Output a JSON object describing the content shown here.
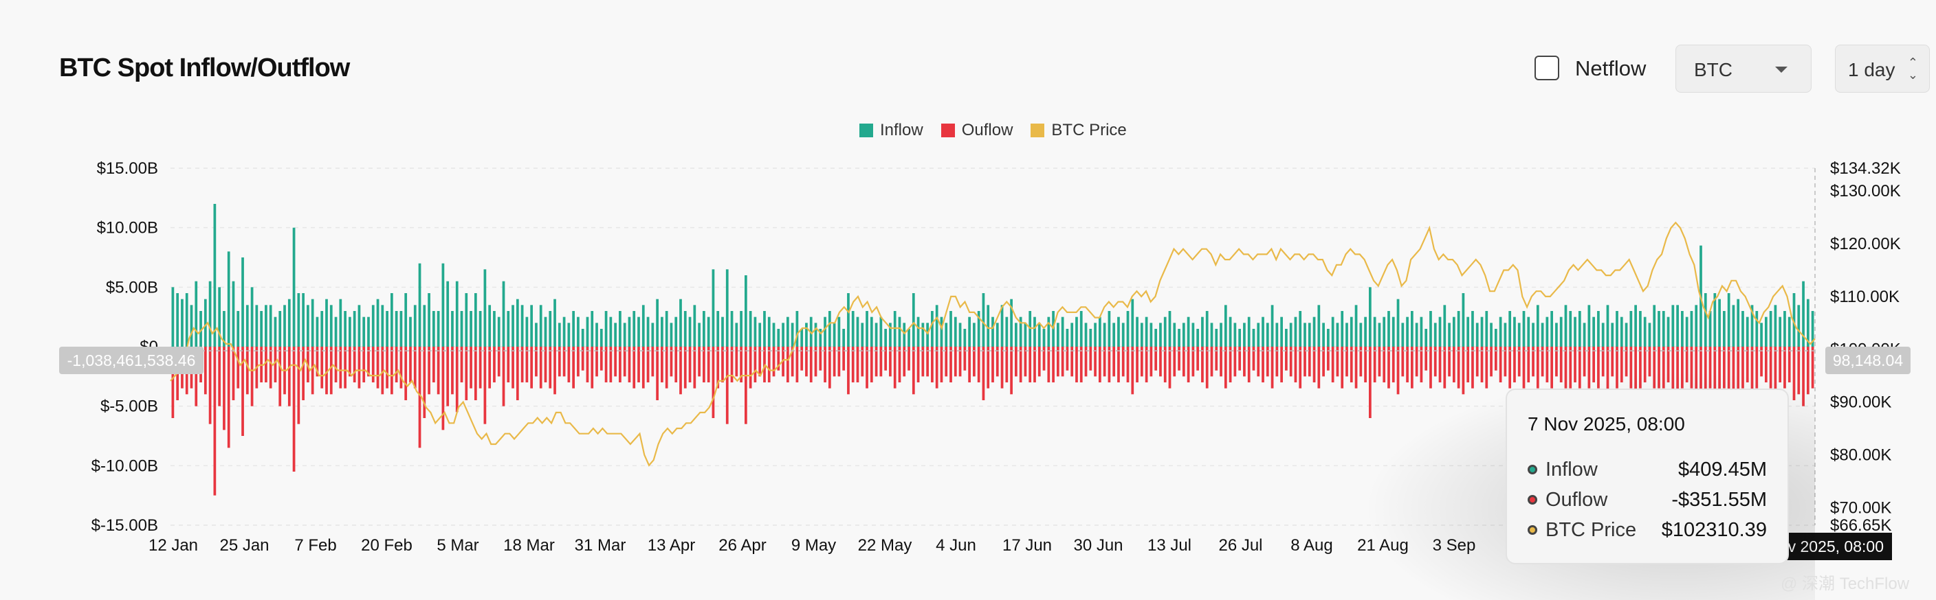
{
  "header": {
    "title": "BTC Spot Inflow/Outflow",
    "netflow_label": "Netflow",
    "asset_select": "BTC",
    "period_select": "1 day"
  },
  "legend": [
    {
      "label": "Inflow",
      "color": "#23a98e"
    },
    {
      "label": "Ouflow",
      "color": "#e8363f"
    },
    {
      "label": "BTC Price",
      "color": "#e9b949"
    }
  ],
  "crosshair": {
    "left_value": "-1,038,461,538.46",
    "right_value": "98,148.04",
    "date_label": "v 2025, 08:00"
  },
  "tooltip": {
    "date": "7 Nov 2025, 08:00",
    "rows": [
      {
        "label": "Inflow",
        "value": "$409.45M",
        "color": "#23a98e"
      },
      {
        "label": "Ouflow",
        "value": "-$351.55M",
        "color": "#e8363f"
      },
      {
        "label": "BTC Price",
        "value": "$102310.39",
        "color": "#e9b949"
      }
    ]
  },
  "watermark": "@ 深潮 TechFlow",
  "chart_data": {
    "type": "bar",
    "title": "BTC Spot Inflow/Outflow",
    "x_ticks": [
      "12 Jan",
      "25 Jan",
      "7 Feb",
      "20 Feb",
      "5 Mar",
      "18 Mar",
      "31 Mar",
      "13 Apr",
      "26 Apr",
      "9 May",
      "22 May",
      "4 Jun",
      "17 Jun",
      "30 Jun",
      "13 Jul",
      "26 Jul",
      "8 Aug",
      "21 Aug",
      "3 Sep"
    ],
    "y_left_ticks": [
      "$15.00B",
      "$10.00B",
      "$5.00B",
      "$0",
      "$-5.00B",
      "$-10.00B",
      "$-15.00B"
    ],
    "y_left_range": [
      -15,
      15
    ],
    "y_right_ticks": [
      "$134.32K",
      "$130.00K",
      "$120.00K",
      "$110.00K",
      "$100.00K",
      "$90.00K",
      "$80.00K",
      "$70.00K",
      "$66.65K"
    ],
    "y_right_range": [
      66.65,
      134.32
    ],
    "inflow_color": "#23a98e",
    "outflow_color": "#e8363f",
    "price_color": "#e9b949",
    "series": [
      {
        "name": "Inflow",
        "unit": "$B",
        "values": [
          5.0,
          4.5,
          4.0,
          4.5,
          3.5,
          5.5,
          3.0,
          4.0,
          5.5,
          12.0,
          5.0,
          3.0,
          8.0,
          5.5,
          3.0,
          7.5,
          3.5,
          5.0,
          3.5,
          3.0,
          3.5,
          3.5,
          2.5,
          3.0,
          3.5,
          4.0,
          10.0,
          4.5,
          4.5,
          3.5,
          4.0,
          2.5,
          3.0,
          4.0,
          3.5,
          2.5,
          4.0,
          3.0,
          2.5,
          3.0,
          3.5,
          2.5,
          2.5,
          3.5,
          4.0,
          3.5,
          3.0,
          4.5,
          3.0,
          3.0,
          4.5,
          2.5,
          3.5,
          7.0,
          3.5,
          4.5,
          3.0,
          3.0,
          7.0,
          5.5,
          3.0,
          5.5,
          3.0,
          4.5,
          3.0,
          4.5,
          3.0,
          6.5,
          3.5,
          3.0,
          2.5,
          5.5,
          3.0,
          3.5,
          4.0,
          3.5,
          2.5,
          3.5,
          2.0,
          3.5,
          2.5,
          3.0,
          4.0,
          2.0,
          2.5,
          2.0,
          3.0,
          2.5,
          1.5,
          2.5,
          3.0,
          2.0,
          1.5,
          3.0,
          2.5,
          2.0,
          3.0,
          2.0,
          2.5,
          3.0,
          2.5,
          3.5,
          2.5,
          2.0,
          4.0,
          2.5,
          3.0,
          2.0,
          2.5,
          4.0,
          3.0,
          2.5,
          3.5,
          2.0,
          3.0,
          2.5,
          6.5,
          3.0,
          2.5,
          6.5,
          3.0,
          2.0,
          3.0,
          6.0,
          3.0,
          2.5,
          2.0,
          3.0,
          2.5,
          2.0,
          1.5,
          2.0,
          2.5,
          2.0,
          3.0,
          1.5,
          2.0,
          2.5,
          2.0,
          1.5,
          2.5,
          3.0,
          2.0,
          2.5,
          1.5,
          4.5,
          3.0,
          2.5,
          2.0,
          3.0,
          2.5,
          2.0,
          2.5,
          1.5,
          2.0,
          3.0,
          2.5,
          2.0,
          1.5,
          4.5,
          2.5,
          2.0,
          2.0,
          3.0,
          3.5,
          2.5,
          2.0,
          3.0,
          2.5,
          2.0,
          1.5,
          2.5,
          2.0,
          3.0,
          4.5,
          3.5,
          2.5,
          2.0,
          3.5,
          2.5,
          4.0,
          2.0,
          2.5,
          2.0,
          3.0,
          2.5,
          2.0,
          1.5,
          2.5,
          3.0,
          2.0,
          2.5,
          1.5,
          2.0,
          2.5,
          3.0,
          2.0,
          1.5,
          2.0,
          2.5,
          2.0,
          3.0,
          2.0,
          2.5,
          2.0,
          3.0,
          4.0,
          2.5,
          2.0,
          2.5,
          2.0,
          1.5,
          2.0,
          2.5,
          3.0,
          2.0,
          1.5,
          2.0,
          2.5,
          2.0,
          1.5,
          2.5,
          3.0,
          2.0,
          1.5,
          2.0,
          3.5,
          2.5,
          2.0,
          1.5,
          2.0,
          2.5,
          1.5,
          2.0,
          2.5,
          2.0,
          3.5,
          2.0,
          2.5,
          1.5,
          2.0,
          2.5,
          3.0,
          2.0,
          2.0,
          2.5,
          3.5,
          2.0,
          1.5,
          2.5,
          2.0,
          3.0,
          2.0,
          2.5,
          3.5,
          2.0,
          2.5,
          5.0,
          2.5,
          2.0,
          2.5,
          3.0,
          2.5,
          4.0,
          2.0,
          2.5,
          3.0,
          2.0,
          2.5,
          1.5,
          3.0,
          2.0,
          2.5,
          3.5,
          2.0,
          2.5,
          3.0,
          4.5,
          2.5,
          3.0,
          2.0,
          2.5,
          3.0,
          2.0,
          1.5,
          2.5,
          2.0,
          3.0,
          2.5,
          2.0,
          3.0,
          2.5,
          2.0,
          3.5,
          2.0,
          2.5,
          3.0,
          2.0,
          2.5,
          3.5,
          3.0,
          2.5,
          3.0,
          2.0,
          3.5,
          2.5,
          3.0,
          2.0,
          3.5,
          2.0,
          3.0,
          2.5,
          2.0,
          3.0,
          3.5,
          3.0,
          2.5,
          2.0,
          3.5,
          3.0,
          3.0,
          2.5,
          3.5,
          3.5,
          3.0,
          2.5,
          3.0,
          3.5,
          8.5,
          4.5,
          3.0,
          4.5,
          4.0,
          3.0,
          4.5,
          3.5,
          4.0,
          3.0,
          2.5,
          3.5,
          3.0,
          2.0,
          2.5,
          3.0,
          3.5,
          2.5,
          3.0,
          2.5,
          4.5,
          3.5,
          5.5,
          4.0,
          3.0
        ]
      },
      {
        "name": "Ouflow",
        "unit": "$B",
        "values": [
          -6.0,
          -4.5,
          -3.5,
          -4.0,
          -3.5,
          -5.0,
          -3.0,
          -4.0,
          -6.5,
          -12.5,
          -5.0,
          -7.0,
          -8.5,
          -4.5,
          -3.5,
          -7.5,
          -4.0,
          -5.0,
          -3.5,
          -3.0,
          -3.0,
          -3.5,
          -3.0,
          -5.0,
          -4.0,
          -5.0,
          -10.5,
          -6.5,
          -4.5,
          -3.0,
          -4.0,
          -2.5,
          -3.5,
          -4.0,
          -4.0,
          -3.0,
          -3.5,
          -3.5,
          -2.5,
          -3.0,
          -3.5,
          -3.0,
          -2.5,
          -3.0,
          -3.5,
          -4.0,
          -3.5,
          -4.0,
          -3.0,
          -3.5,
          -4.5,
          -3.0,
          -3.5,
          -8.5,
          -6.0,
          -4.0,
          -3.0,
          -4.0,
          -7.0,
          -5.0,
          -4.0,
          -5.5,
          -3.0,
          -4.5,
          -3.5,
          -4.5,
          -3.5,
          -6.5,
          -3.5,
          -3.0,
          -2.5,
          -5.0,
          -3.0,
          -3.5,
          -4.5,
          -3.0,
          -3.0,
          -3.5,
          -2.5,
          -3.5,
          -3.0,
          -3.5,
          -4.0,
          -2.5,
          -2.5,
          -3.0,
          -3.5,
          -2.5,
          -2.0,
          -3.0,
          -3.5,
          -2.5,
          -2.0,
          -3.0,
          -3.0,
          -2.5,
          -3.0,
          -2.5,
          -3.0,
          -3.5,
          -3.0,
          -3.5,
          -3.0,
          -2.5,
          -4.5,
          -3.0,
          -3.5,
          -2.5,
          -3.0,
          -4.0,
          -3.5,
          -3.0,
          -3.5,
          -2.5,
          -3.0,
          -3.0,
          -6.0,
          -3.5,
          -3.0,
          -6.5,
          -3.0,
          -2.5,
          -3.0,
          -6.5,
          -3.5,
          -3.0,
          -2.5,
          -3.0,
          -3.0,
          -2.5,
          -2.0,
          -2.5,
          -3.0,
          -2.5,
          -3.0,
          -2.0,
          -2.5,
          -3.0,
          -2.5,
          -2.0,
          -3.0,
          -3.5,
          -2.5,
          -2.5,
          -2.0,
          -4.0,
          -3.0,
          -3.0,
          -2.5,
          -3.5,
          -3.0,
          -2.5,
          -2.5,
          -2.0,
          -2.5,
          -3.5,
          -3.0,
          -2.5,
          -2.0,
          -4.0,
          -3.0,
          -2.5,
          -2.5,
          -3.0,
          -3.5,
          -3.0,
          -2.5,
          -3.0,
          -2.5,
          -2.5,
          -2.0,
          -3.0,
          -2.5,
          -3.0,
          -4.5,
          -3.5,
          -3.0,
          -2.5,
          -3.5,
          -3.0,
          -4.0,
          -2.5,
          -3.0,
          -2.5,
          -3.0,
          -3.0,
          -2.5,
          -2.0,
          -3.0,
          -3.0,
          -2.5,
          -2.5,
          -2.0,
          -2.5,
          -3.0,
          -3.0,
          -2.5,
          -2.0,
          -2.5,
          -3.0,
          -2.5,
          -3.0,
          -2.5,
          -3.0,
          -2.5,
          -3.0,
          -4.0,
          -3.0,
          -2.5,
          -3.0,
          -2.5,
          -2.0,
          -2.5,
          -3.0,
          -3.5,
          -2.5,
          -2.0,
          -2.5,
          -3.0,
          -2.5,
          -2.0,
          -3.0,
          -3.5,
          -2.5,
          -2.0,
          -2.5,
          -3.5,
          -3.0,
          -2.5,
          -2.0,
          -2.5,
          -3.0,
          -2.0,
          -2.5,
          -3.0,
          -2.5,
          -3.5,
          -2.5,
          -3.0,
          -2.0,
          -2.5,
          -3.0,
          -3.5,
          -2.5,
          -2.5,
          -3.0,
          -3.5,
          -2.5,
          -2.0,
          -3.0,
          -2.5,
          -3.5,
          -2.5,
          -3.0,
          -3.5,
          -2.5,
          -3.0,
          -6.0,
          -3.0,
          -2.5,
          -3.0,
          -3.5,
          -3.0,
          -4.0,
          -2.5,
          -3.0,
          -3.5,
          -2.5,
          -3.0,
          -2.0,
          -3.5,
          -2.5,
          -3.0,
          -3.5,
          -2.5,
          -3.0,
          -3.5,
          -4.0,
          -3.0,
          -3.5,
          -2.5,
          -3.0,
          -3.5,
          -2.5,
          -2.0,
          -3.0,
          -2.5,
          -3.5,
          -3.0,
          -2.5,
          -3.5,
          -3.0,
          -2.5,
          -3.5,
          -2.5,
          -3.0,
          -3.5,
          -2.5,
          -3.0,
          -3.5,
          -3.5,
          -3.0,
          -3.5,
          -2.5,
          -3.5,
          -3.0,
          -3.5,
          -2.5,
          -4.0,
          -2.5,
          -3.5,
          -3.0,
          -2.5,
          -3.5,
          -4.0,
          -3.5,
          -3.0,
          -2.5,
          -3.5,
          -3.5,
          -3.5,
          -3.0,
          -4.0,
          -4.0,
          -3.5,
          -3.0,
          -3.5,
          -4.0,
          -6.5,
          -5.0,
          -3.5,
          -5.0,
          -4.5,
          -3.5,
          -5.0,
          -4.0,
          -4.5,
          -3.5,
          -3.0,
          -4.0,
          -3.5,
          -2.5,
          -3.0,
          -3.5,
          -4.0,
          -3.0,
          -3.5,
          -3.0,
          -4.5,
          -4.0,
          -5.0,
          -4.0,
          -3.5
        ]
      },
      {
        "name": "BTC Price",
        "unit": "$K",
        "values": [
          94,
          95,
          96,
          98,
          102,
          104,
          103,
          104,
          105,
          103,
          104,
          102,
          101,
          101,
          99,
          97,
          98,
          96,
          96,
          97,
          97,
          98,
          97,
          98,
          96,
          96,
          97,
          97,
          96,
          98,
          96,
          97,
          95,
          95,
          96,
          97,
          96,
          96,
          96,
          95,
          96,
          96,
          96,
          95,
          95,
          95,
          96,
          95,
          95,
          96,
          94,
          93,
          94,
          92,
          91,
          89,
          88,
          86,
          87,
          88,
          86,
          86,
          89,
          90,
          88,
          86,
          84,
          83,
          84,
          82,
          82,
          83,
          84,
          84,
          83,
          84,
          85,
          86,
          86,
          87,
          86,
          87,
          86,
          88,
          88,
          86,
          86,
          85,
          84,
          84,
          84,
          85,
          84,
          85,
          84,
          84,
          84,
          84,
          83,
          82,
          83,
          84,
          80,
          78,
          79,
          82,
          84,
          85,
          84,
          85,
          85,
          86,
          86,
          87,
          88,
          88,
          89,
          91,
          94,
          94,
          95,
          95,
          94,
          95,
          95,
          95,
          96,
          95,
          97,
          96,
          96,
          97,
          98,
          98,
          100,
          103,
          104,
          104,
          103,
          104,
          103,
          104,
          105,
          105,
          107,
          108,
          107,
          109,
          110,
          108,
          109,
          107,
          108,
          106,
          105,
          104,
          104,
          104,
          103,
          104,
          105,
          104,
          104,
          103,
          105,
          106,
          104,
          107,
          110,
          110,
          108,
          109,
          107,
          107,
          106,
          105,
          104,
          104,
          106,
          108,
          109,
          108,
          106,
          105,
          105,
          104,
          104,
          105,
          104,
          105,
          104,
          107,
          108,
          107,
          107,
          107,
          108,
          108,
          107,
          106,
          106,
          108,
          109,
          108,
          109,
          109,
          108,
          110,
          111,
          110,
          111,
          109,
          110,
          113,
          115,
          117,
          119,
          118,
          119,
          118,
          117,
          118,
          119,
          119,
          118,
          116,
          118,
          117,
          117,
          118,
          119,
          118,
          118,
          117,
          118,
          118,
          118,
          119,
          117,
          119,
          118,
          117,
          118,
          118,
          117,
          118,
          118,
          117,
          117,
          115,
          114,
          116,
          116,
          118,
          119,
          118,
          118,
          117,
          115,
          113,
          112,
          114,
          116,
          117,
          115,
          112,
          113,
          117,
          118,
          119,
          121,
          123,
          119,
          117,
          118,
          117,
          117,
          116,
          114,
          115,
          116,
          117,
          116,
          114,
          111,
          111,
          113,
          115,
          115,
          116,
          115,
          110,
          108,
          110,
          111,
          111,
          110,
          110,
          111,
          112,
          113,
          115,
          116,
          115,
          116,
          117,
          116,
          115,
          115,
          114,
          114,
          115,
          115,
          116,
          117,
          115,
          113,
          111,
          112,
          115,
          117,
          118,
          121,
          123,
          124,
          123,
          121,
          118,
          116,
          111,
          108,
          106,
          109,
          110,
          112,
          111,
          113,
          113,
          111,
          110,
          108,
          106,
          105,
          107,
          108,
          110,
          111,
          112,
          110,
          106,
          104,
          103,
          102,
          101,
          102
        ]
      }
    ],
    "y_unit_left": "$",
    "y_unit_right": "$"
  }
}
